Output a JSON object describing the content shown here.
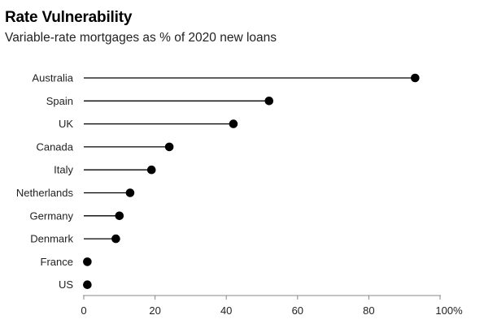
{
  "title": "Rate Vulnerability",
  "subtitle": "Variable-rate mortgages as % of 2020 new loans",
  "chart_data": {
    "type": "lollipop",
    "title": "Rate Vulnerability",
    "subtitle": "Variable-rate mortgages as % of 2020 new loans",
    "categories": [
      "Australia",
      "Spain",
      "UK",
      "Canada",
      "Italy",
      "Netherlands",
      "Germany",
      "Denmark",
      "France",
      "US"
    ],
    "values": [
      93,
      52,
      42,
      24,
      19,
      13,
      10,
      9,
      1,
      1
    ],
    "xlim": [
      0,
      100
    ],
    "xticks": [
      0,
      20,
      40,
      60,
      80,
      100
    ],
    "xtick_labels": [
      "0",
      "20",
      "40",
      "60",
      "80",
      "100%"
    ],
    "grid": false,
    "legend": "none",
    "colors": {
      "mark": "#000000",
      "axis": "#888888",
      "text": "#222222"
    }
  }
}
